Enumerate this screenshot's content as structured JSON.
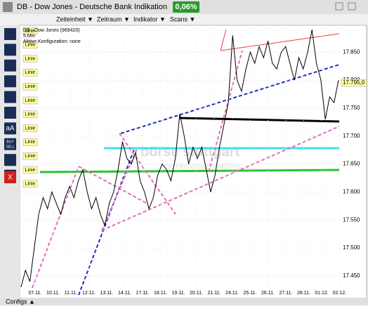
{
  "window": {
    "title": "DB - Dow Jones - Deutsche Bank Indikation",
    "change": "0,06%",
    "menu": [
      "Zeiteinheit ▼",
      "Zeitraum ▼",
      "Indikator ▼",
      "Scans ▼"
    ]
  },
  "toolbar": {
    "labels": [
      "Linie",
      "Linie",
      "Linie",
      "Linie",
      "Linie",
      "Linie",
      "Linie",
      "Linie",
      "Linie",
      "Linie",
      "Linie",
      "Linie"
    ],
    "icon_texts": [
      "aA",
      "BUY",
      "SELL",
      "X"
    ]
  },
  "chart": {
    "info": [
      "DB - Dow Jones (969420)",
      "5 Min",
      "Aktive Konfiguration: none"
    ],
    "watermark": [
      "börse stuttgart",
      "DIE PRIVATANLEGERBÖRSE"
    ],
    "type": "line",
    "ylim": [
      17416,
      17893
    ],
    "yticks": [
      {
        "value": 17850,
        "label": "17.850"
      },
      {
        "value": 17800,
        "label": "17.800"
      },
      {
        "value": 17750,
        "label": "17.750"
      },
      {
        "value": 17700,
        "label": "17.700"
      },
      {
        "value": 17650,
        "label": "17.650"
      },
      {
        "value": 17600,
        "label": "17.600"
      },
      {
        "value": 17550,
        "label": "17.550"
      },
      {
        "value": 17500,
        "label": "17.500"
      },
      {
        "value": 17450,
        "label": "17.450"
      }
    ],
    "x_labels": [
      "07.11.",
      "10.11.",
      "11.11.",
      "12.11.",
      "13.11.",
      "14.11.",
      "17.11.",
      "18.11.",
      "19.11.",
      "20.11.",
      "21.11.",
      "24.11.",
      "25.11.",
      "26.11.",
      "27.11.",
      "28.11.",
      "01.12.",
      "02.12."
    ],
    "price": {
      "color": "#000000",
      "values": [
        17430,
        17460,
        17440,
        17500,
        17560,
        17590,
        17570,
        17600,
        17580,
        17560,
        17590,
        17610,
        17590,
        17620,
        17640,
        17600,
        17570,
        17590,
        17560,
        17540,
        17580,
        17600,
        17640,
        17690,
        17660,
        17650,
        17670,
        17620,
        17600,
        17570,
        17590,
        17630,
        17650,
        17640,
        17620,
        17660,
        17740,
        17700,
        17650,
        17680,
        17660,
        17680,
        17640,
        17600,
        17630,
        17680,
        17720,
        17760,
        17880,
        17800,
        17780,
        17820,
        17850,
        17830,
        17860,
        17840,
        17870,
        17830,
        17820,
        17850,
        17860,
        17830,
        17800,
        17840,
        17820,
        17850,
        17890,
        17830,
        17800,
        17730,
        17770,
        17760,
        17800
      ]
    },
    "last_price": {
      "value": 17795,
      "label": "17.795,0"
    }
  },
  "footer": "Configs ▲"
}
